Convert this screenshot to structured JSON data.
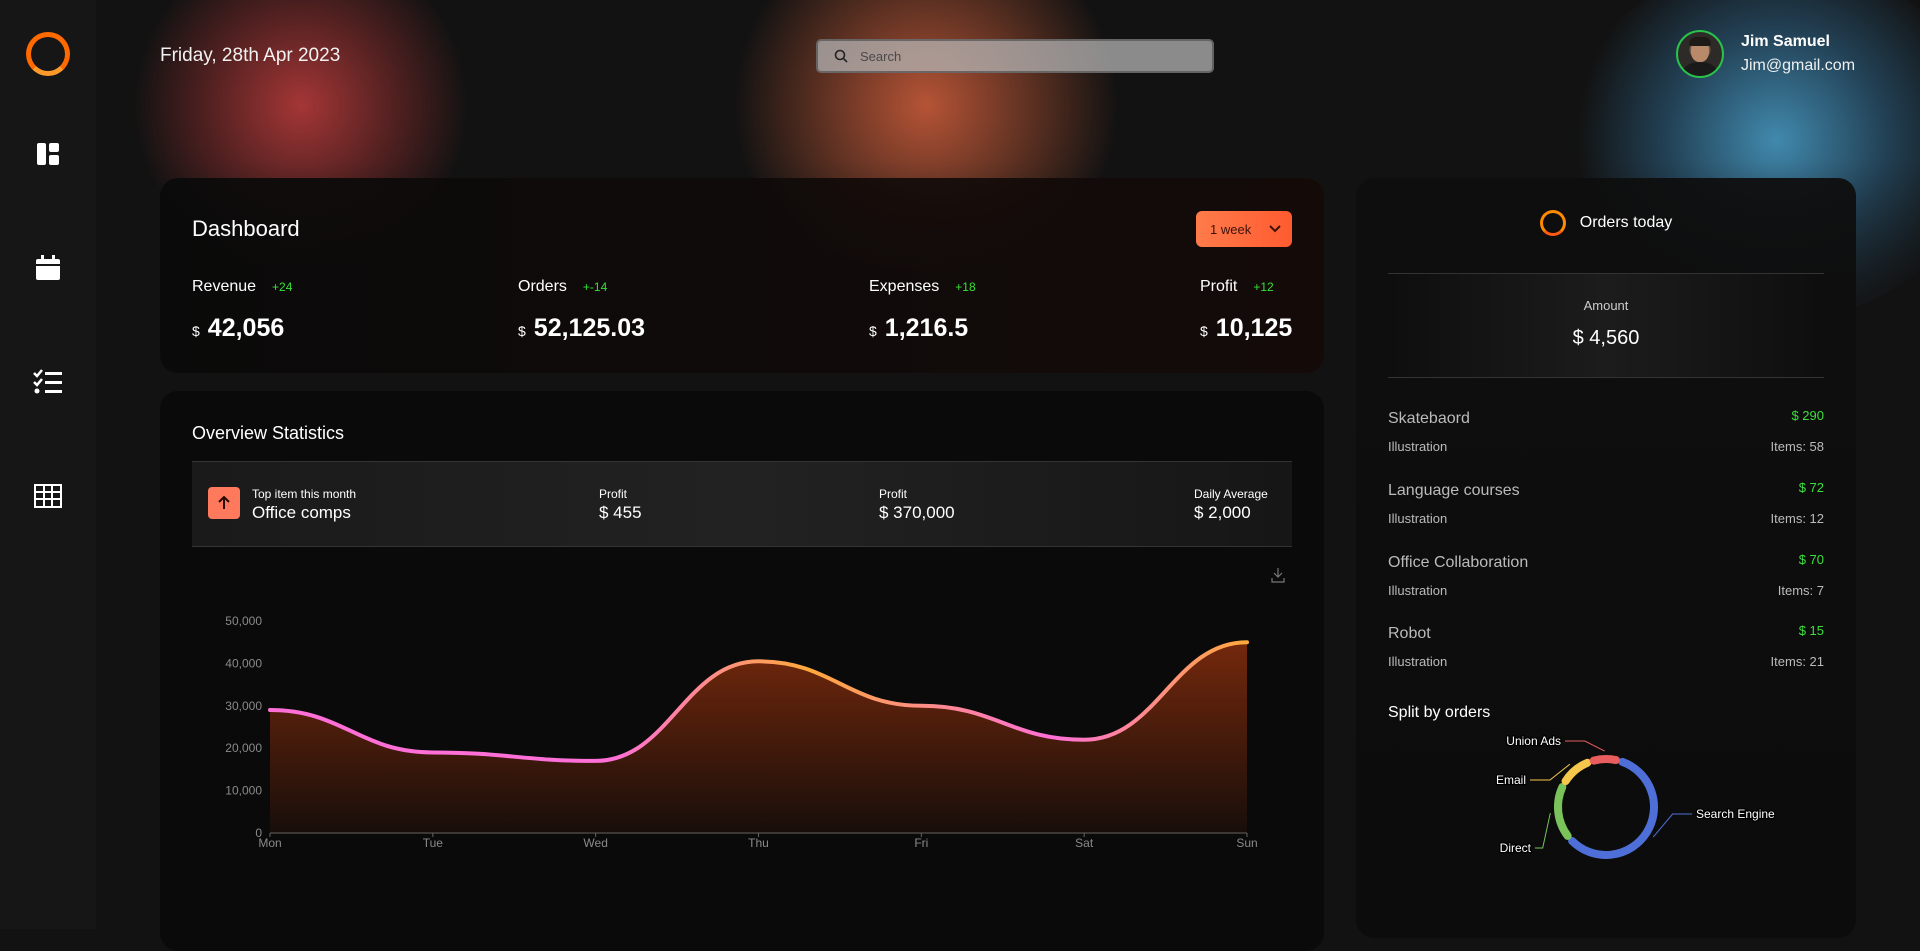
{
  "header": {
    "date": "Friday, 28th Apr 2023",
    "search_placeholder": "Search",
    "user_name": "Jim Samuel",
    "user_email": "Jim@gmail.com"
  },
  "sidebar": {
    "icons": [
      "dashboard-icon",
      "calendar-icon",
      "tasks-icon",
      "table-icon"
    ]
  },
  "dashboard": {
    "title": "Dashboard",
    "period": "1 week",
    "stats": [
      {
        "label": "Revenue",
        "change": "+24",
        "currency": "$",
        "value": "42,056"
      },
      {
        "label": "Orders",
        "change": "+-14",
        "currency": "$",
        "value": "52,125.03"
      },
      {
        "label": "Expenses",
        "change": "+18",
        "currency": "$",
        "value": "1,216.5"
      },
      {
        "label": "Profit",
        "change": "+12",
        "currency": "$",
        "value": "10,125"
      }
    ]
  },
  "overview": {
    "title": "Overview Statistics",
    "top_item_label": "Top item this month",
    "top_item_value": "Office comps",
    "profit1_label": "Profit",
    "profit1_value": "$ 455",
    "profit2_label": "Profit",
    "profit2_value": "$ 370,000",
    "daily_label": "Daily Average",
    "daily_value": "$ 2,000"
  },
  "chart_data": {
    "type": "area",
    "categories": [
      "Mon",
      "Tue",
      "Wed",
      "Thu",
      "Fri",
      "Sat",
      "Sun"
    ],
    "series": [
      {
        "values": [
          29000,
          19000,
          17000,
          40500,
          30000,
          22000,
          45000
        ]
      }
    ],
    "y_ticks": [
      "0",
      "10,000",
      "20,000",
      "30,000",
      "40,000",
      "50,000"
    ],
    "ylim": [
      0,
      50000
    ],
    "grid": false,
    "colors": {
      "line_start": "#ff6fd8",
      "line_end": "#ffa93b",
      "fill": "#7a2a0c"
    }
  },
  "orders_today": {
    "title": "Orders today",
    "amount_label": "Amount",
    "amount_value": "$ 4,560",
    "products": [
      {
        "name": "Skatebaord",
        "price": "$ 290",
        "category": "Illustration",
        "items": "Items: 58"
      },
      {
        "name": "Language courses",
        "price": "$ 72",
        "category": "Illustration",
        "items": "Items: 12"
      },
      {
        "name": "Office Collaboration",
        "price": "$ 70",
        "category": "Illustration",
        "items": "Items: 7"
      },
      {
        "name": "Robot",
        "price": "$ 15",
        "category": "Illustration",
        "items": "Items: 21"
      }
    ],
    "split_title": "Split by orders",
    "split": [
      {
        "label": "Search Engine",
        "value": 55,
        "color": "#4f6fd8"
      },
      {
        "label": "Direct",
        "value": 18,
        "color": "#79c35a"
      },
      {
        "label": "Email",
        "value": 11,
        "color": "#f5c84c"
      },
      {
        "label": "Union Ads",
        "value": 9,
        "color": "#e85d5d"
      }
    ]
  }
}
